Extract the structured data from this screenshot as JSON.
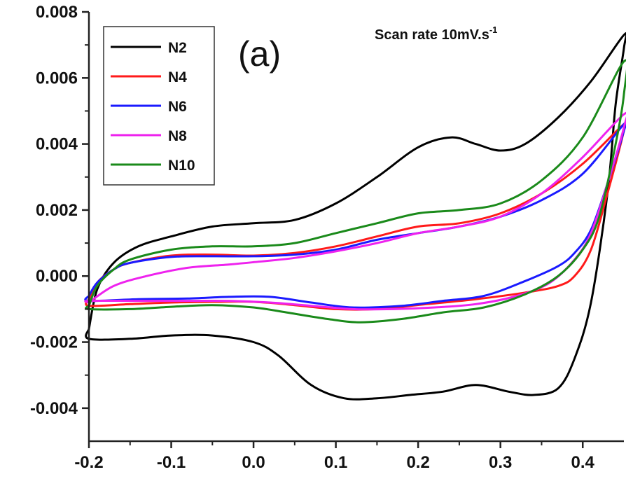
{
  "chart_data": {
    "type": "line",
    "title": "",
    "xlabel": "",
    "ylabel": "",
    "xlim": [
      -0.2,
      0.45
    ],
    "ylim": [
      -0.005,
      0.008
    ],
    "x_ticks": [
      "-0.2",
      "-0.1",
      "0.0",
      "0.1",
      "0.2",
      "0.3",
      "0.4"
    ],
    "y_ticks": [
      "0.008",
      "0.006",
      "0.004",
      "0.002",
      "0.000",
      "-0.002",
      "-0.004"
    ],
    "grid": false,
    "legend_position": "top-left",
    "panel_label": "(a)",
    "annotation": {
      "text": "Scan rate 10mV.s",
      "superscript": "-1"
    },
    "series": [
      {
        "name": "N2",
        "color": "#000000",
        "points": [
          [
            -0.2,
            -0.0016
          ],
          [
            -0.19,
            -0.0004
          ],
          [
            -0.17,
            0.0004
          ],
          [
            -0.14,
            0.0009
          ],
          [
            -0.1,
            0.0012
          ],
          [
            -0.05,
            0.0015
          ],
          [
            0.0,
            0.0016
          ],
          [
            0.05,
            0.0017
          ],
          [
            0.1,
            0.0022
          ],
          [
            0.15,
            0.003
          ],
          [
            0.2,
            0.0039
          ],
          [
            0.24,
            0.0042
          ],
          [
            0.27,
            0.004
          ],
          [
            0.3,
            0.0038
          ],
          [
            0.33,
            0.004
          ],
          [
            0.37,
            0.0048
          ],
          [
            0.41,
            0.0059
          ],
          [
            0.45,
            0.0073
          ],
          [
            0.45,
            0.0069
          ],
          [
            0.44,
            0.0052
          ],
          [
            0.43,
            0.0025
          ],
          [
            0.41,
            -0.0008
          ],
          [
            0.39,
            -0.0025
          ],
          [
            0.37,
            -0.0034
          ],
          [
            0.34,
            -0.0036
          ],
          [
            0.31,
            -0.0035
          ],
          [
            0.27,
            -0.0033
          ],
          [
            0.23,
            -0.0035
          ],
          [
            0.19,
            -0.0036
          ],
          [
            0.15,
            -0.0037
          ],
          [
            0.11,
            -0.0037
          ],
          [
            0.07,
            -0.0033
          ],
          [
            0.03,
            -0.0024
          ],
          [
            0.0,
            -0.002
          ],
          [
            -0.05,
            -0.0018
          ],
          [
            -0.1,
            -0.0018
          ],
          [
            -0.15,
            -0.0019
          ],
          [
            -0.2,
            -0.0019
          ],
          [
            -0.2,
            -0.0016
          ]
        ]
      },
      {
        "name": "N4",
        "color": "#ff1a1a",
        "points": [
          [
            -0.2,
            -0.0007
          ],
          [
            -0.19,
            -0.0002
          ],
          [
            -0.17,
            0.0002
          ],
          [
            -0.15,
            0.0004
          ],
          [
            -0.1,
            0.00062
          ],
          [
            -0.05,
            0.00065
          ],
          [
            0.0,
            0.00062
          ],
          [
            0.05,
            0.0007
          ],
          [
            0.1,
            0.0009
          ],
          [
            0.15,
            0.0012
          ],
          [
            0.2,
            0.0015
          ],
          [
            0.25,
            0.0016
          ],
          [
            0.3,
            0.0019
          ],
          [
            0.35,
            0.0025
          ],
          [
            0.4,
            0.0034
          ],
          [
            0.45,
            0.0046
          ],
          [
            0.45,
            0.0044
          ],
          [
            0.43,
            0.0025
          ],
          [
            0.41,
            0.0008
          ],
          [
            0.39,
            0.0
          ],
          [
            0.37,
            -0.0003
          ],
          [
            0.33,
            -0.0005
          ],
          [
            0.27,
            -0.0007
          ],
          [
            0.21,
            -0.00085
          ],
          [
            0.15,
            -0.001
          ],
          [
            0.1,
            -0.001
          ],
          [
            0.05,
            -0.00088
          ],
          [
            0.0,
            -0.00078
          ],
          [
            -0.05,
            -0.00078
          ],
          [
            -0.1,
            -0.0008
          ],
          [
            -0.15,
            -0.00085
          ],
          [
            -0.2,
            -0.0009
          ],
          [
            -0.2,
            -0.0007
          ]
        ]
      },
      {
        "name": "N6",
        "color": "#1a1aff",
        "points": [
          [
            -0.2,
            -0.0006
          ],
          [
            -0.19,
            -0.0002
          ],
          [
            -0.17,
            0.0002
          ],
          [
            -0.15,
            0.0004
          ],
          [
            -0.1,
            0.00058
          ],
          [
            -0.05,
            0.0006
          ],
          [
            0.0,
            0.0006
          ],
          [
            0.05,
            0.00065
          ],
          [
            0.1,
            0.0008
          ],
          [
            0.15,
            0.0011
          ],
          [
            0.2,
            0.0013
          ],
          [
            0.25,
            0.0015
          ],
          [
            0.3,
            0.0018
          ],
          [
            0.35,
            0.0023
          ],
          [
            0.4,
            0.0031
          ],
          [
            0.45,
            0.0046
          ],
          [
            0.45,
            0.0044
          ],
          [
            0.43,
            0.0028
          ],
          [
            0.41,
            0.0014
          ],
          [
            0.39,
            0.0007
          ],
          [
            0.37,
            0.0003
          ],
          [
            0.33,
            -0.00015
          ],
          [
            0.28,
            -0.0006
          ],
          [
            0.23,
            -0.00075
          ],
          [
            0.18,
            -0.0009
          ],
          [
            0.12,
            -0.00095
          ],
          [
            0.07,
            -0.0008
          ],
          [
            0.02,
            -0.00063
          ],
          [
            -0.03,
            -0.00063
          ],
          [
            -0.08,
            -0.00068
          ],
          [
            -0.14,
            -0.0007
          ],
          [
            -0.2,
            -0.00075
          ],
          [
            -0.2,
            -0.0006
          ]
        ]
      },
      {
        "name": "N8",
        "color": "#ee22ee",
        "points": [
          [
            -0.2,
            -0.0008
          ],
          [
            -0.17,
            -0.0003
          ],
          [
            -0.13,
            0.0
          ],
          [
            -0.08,
            0.00025
          ],
          [
            -0.03,
            0.00035
          ],
          [
            0.0,
            0.00042
          ],
          [
            0.05,
            0.00055
          ],
          [
            0.1,
            0.00075
          ],
          [
            0.15,
            0.001
          ],
          [
            0.2,
            0.0013
          ],
          [
            0.25,
            0.0015
          ],
          [
            0.3,
            0.0018
          ],
          [
            0.35,
            0.0025
          ],
          [
            0.4,
            0.0036
          ],
          [
            0.45,
            0.0049
          ],
          [
            0.45,
            0.0045
          ],
          [
            0.43,
            0.0028
          ],
          [
            0.41,
            0.0013
          ],
          [
            0.39,
            0.0005
          ],
          [
            0.36,
            -0.0002
          ],
          [
            0.32,
            -0.0006
          ],
          [
            0.27,
            -0.00085
          ],
          [
            0.22,
            -0.00095
          ],
          [
            0.17,
            -0.001
          ],
          [
            0.12,
            -0.001
          ],
          [
            0.07,
            -0.0009
          ],
          [
            0.02,
            -0.0008
          ],
          [
            -0.03,
            -0.00075
          ],
          [
            -0.08,
            -0.00075
          ],
          [
            -0.14,
            -0.00075
          ],
          [
            -0.2,
            -0.00075
          ],
          [
            -0.2,
            -0.0008
          ]
        ]
      },
      {
        "name": "N10",
        "color": "#1a8a1a",
        "points": [
          [
            -0.2,
            -0.0009
          ],
          [
            -0.19,
            -0.0003
          ],
          [
            -0.17,
            0.0002
          ],
          [
            -0.15,
            0.0005
          ],
          [
            -0.1,
            0.0008
          ],
          [
            -0.05,
            0.0009
          ],
          [
            0.0,
            0.0009
          ],
          [
            0.05,
            0.001
          ],
          [
            0.1,
            0.0013
          ],
          [
            0.15,
            0.0016
          ],
          [
            0.2,
            0.0019
          ],
          [
            0.25,
            0.002
          ],
          [
            0.3,
            0.0022
          ],
          [
            0.35,
            0.0029
          ],
          [
            0.4,
            0.0042
          ],
          [
            0.45,
            0.0065
          ],
          [
            0.45,
            0.0055
          ],
          [
            0.44,
            0.004
          ],
          [
            0.42,
            0.0018
          ],
          [
            0.4,
            0.0008
          ],
          [
            0.37,
            0.0
          ],
          [
            0.33,
            -0.00055
          ],
          [
            0.28,
            -0.00095
          ],
          [
            0.23,
            -0.0011
          ],
          [
            0.18,
            -0.0013
          ],
          [
            0.13,
            -0.0014
          ],
          [
            0.09,
            -0.0013
          ],
          [
            0.04,
            -0.0011
          ],
          [
            0.0,
            -0.00095
          ],
          [
            -0.05,
            -0.00088
          ],
          [
            -0.1,
            -0.00093
          ],
          [
            -0.15,
            -0.001
          ],
          [
            -0.2,
            -0.001
          ],
          [
            -0.2,
            -0.0009
          ]
        ]
      }
    ]
  }
}
